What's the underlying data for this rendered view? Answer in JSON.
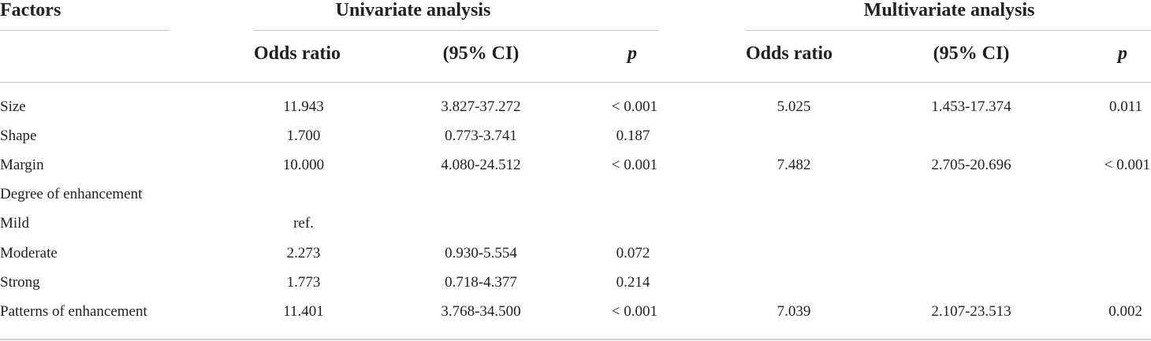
{
  "table": {
    "header": {
      "factors": "Factors",
      "univariate": "Univariate analysis",
      "multivariate": "Multivariate analysis",
      "odds_ratio": "Odds ratio",
      "ci": "(95% CI)",
      "p": "p"
    },
    "rows": [
      {
        "factor": "Size",
        "uni_or": "11.943",
        "uni_ci": "3.827-37.272",
        "uni_p": "< 0.001",
        "multi_or": "5.025",
        "multi_ci": "1.453-17.374",
        "multi_p": "0.011"
      },
      {
        "factor": "Shape",
        "uni_or": "1.700",
        "uni_ci": "0.773-3.741",
        "uni_p": "0.187",
        "multi_or": "",
        "multi_ci": "",
        "multi_p": ""
      },
      {
        "factor": "Margin",
        "uni_or": "10.000",
        "uni_ci": "4.080-24.512",
        "uni_p": "< 0.001",
        "multi_or": "7.482",
        "multi_ci": "2.705-20.696",
        "multi_p": "< 0.001"
      },
      {
        "factor": "Degree of enhancement",
        "uni_or": "",
        "uni_ci": "",
        "uni_p": "",
        "multi_or": "",
        "multi_ci": "",
        "multi_p": ""
      },
      {
        "factor": "Mild",
        "uni_or": "ref.",
        "uni_ci": "",
        "uni_p": "",
        "multi_or": "",
        "multi_ci": "",
        "multi_p": ""
      },
      {
        "factor": "Moderate",
        "uni_or": "2.273",
        "uni_ci": "0.930-5.554",
        "uni_p": "0.072",
        "multi_or": "",
        "multi_ci": "",
        "multi_p": ""
      },
      {
        "factor": "Strong",
        "uni_or": "1.773",
        "uni_ci": "0.718-4.377",
        "uni_p": "0.214",
        "multi_or": "",
        "multi_ci": "",
        "multi_p": ""
      },
      {
        "factor": "Patterns of enhancement",
        "uni_or": "11.401",
        "uni_ci": "3.768-34.500",
        "uni_p": "< 0.001",
        "multi_or": "7.039",
        "multi_ci": "2.107-23.513",
        "multi_p": "0.002"
      }
    ]
  }
}
